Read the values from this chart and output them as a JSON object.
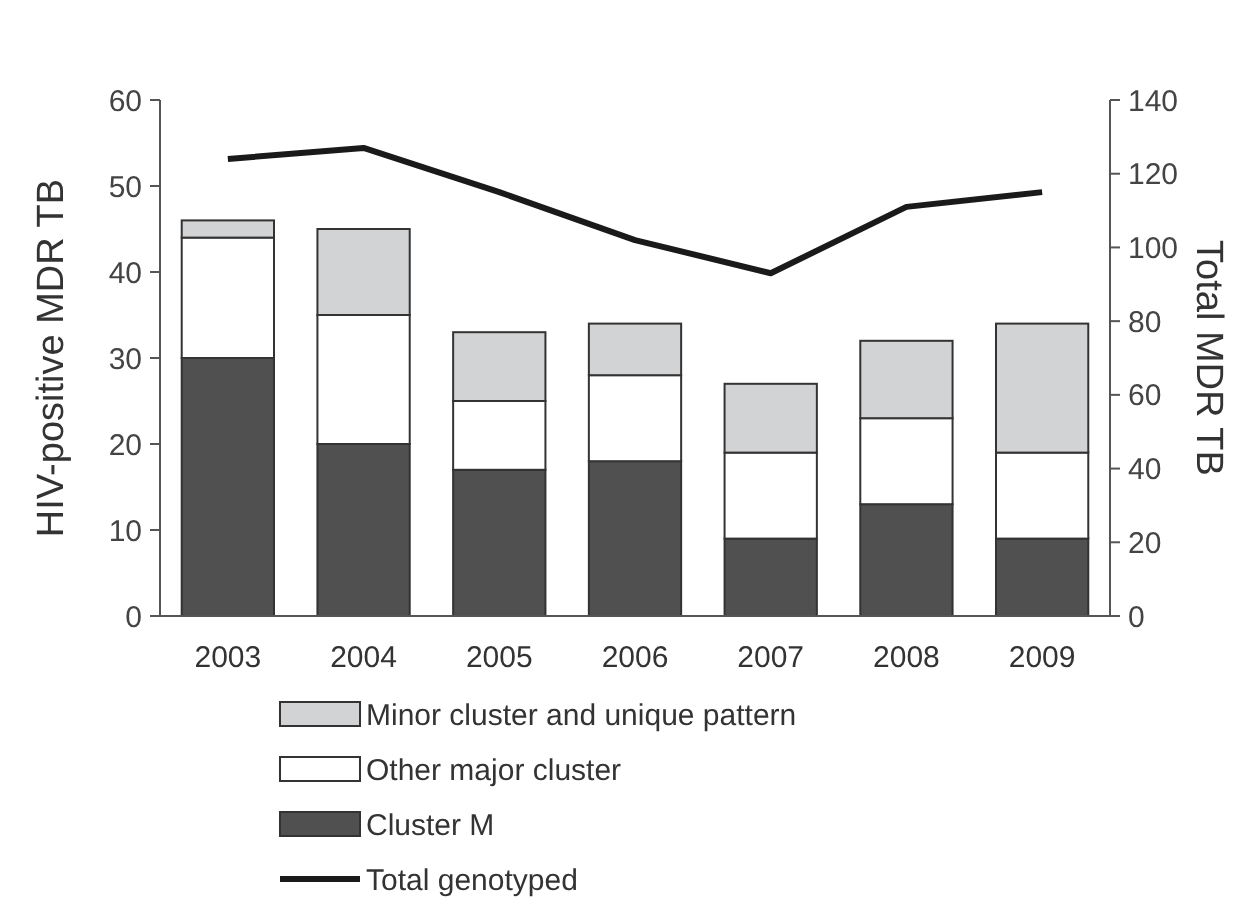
{
  "chart_data": {
    "type": "bar",
    "stacked": true,
    "categories": [
      "2003",
      "2004",
      "2005",
      "2006",
      "2007",
      "2008",
      "2009"
    ],
    "ylabel": "HIV-positive MDR TB",
    "y2label": "Total MDR TB",
    "ylim": [
      0,
      60
    ],
    "yticks": [
      0,
      10,
      20,
      30,
      40,
      50,
      60
    ],
    "y2lim": [
      0,
      140
    ],
    "y2ticks": [
      0,
      20,
      40,
      60,
      80,
      100,
      120,
      140
    ],
    "legend": "bottom",
    "grid": false,
    "series": [
      {
        "name": "Cluster M",
        "color": "#505050",
        "values": [
          30,
          20,
          17,
          18,
          9,
          13,
          9
        ]
      },
      {
        "name": "Other major cluster",
        "color": "#ffffff",
        "values": [
          14,
          15,
          8,
          10,
          10,
          10,
          10
        ]
      },
      {
        "name": "Minor cluster and unique pattern",
        "color": "#d2d3d5",
        "values": [
          2,
          10,
          8,
          6,
          8,
          9,
          15
        ]
      },
      {
        "name": "Total genotyped",
        "type": "line",
        "axis": "y2",
        "color": "#1a1a1a",
        "values": [
          124,
          127,
          115,
          102,
          93,
          111,
          115
        ]
      }
    ]
  }
}
